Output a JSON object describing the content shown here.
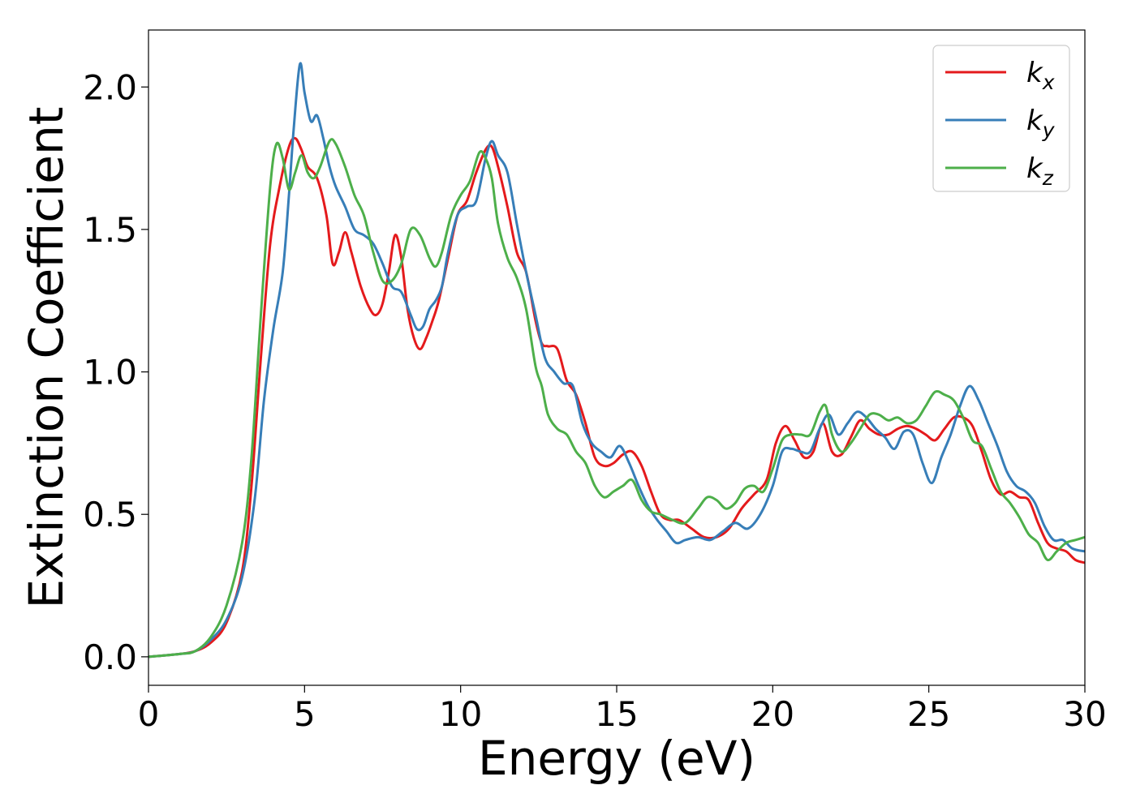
{
  "chart_data": {
    "type": "line",
    "title": "",
    "xlabel": "Energy (eV)",
    "ylabel": "Extinction Coefficient",
    "xlim": [
      0,
      30
    ],
    "ylim": [
      -0.1,
      2.2
    ],
    "xticks": [
      0,
      5,
      10,
      15,
      20,
      25,
      30
    ],
    "xtick_labels": [
      "0",
      "5",
      "10",
      "15",
      "20",
      "25",
      "30"
    ],
    "yticks": [
      0.0,
      0.5,
      1.0,
      1.5,
      2.0
    ],
    "ytick_labels": [
      "0.0",
      "0.5",
      "1.0",
      "1.5",
      "2.0"
    ],
    "grid": false,
    "legend_position": "top-right",
    "series": [
      {
        "name": "k_x",
        "legend_base": "k",
        "legend_sub": "x",
        "color": "#e41a1c",
        "x": [
          0,
          1,
          1.5,
          2,
          2.5,
          3,
          3.3,
          3.6,
          3.9,
          4.2,
          4.5,
          4.7,
          4.9,
          5.1,
          5.4,
          5.7,
          5.9,
          6.1,
          6.3,
          6.5,
          6.8,
          7.1,
          7.3,
          7.5,
          7.7,
          7.9,
          8.1,
          8.3,
          8.5,
          8.7,
          8.9,
          9.1,
          9.3,
          9.6,
          9.9,
          10.2,
          10.5,
          10.8,
          11.0,
          11.2,
          11.5,
          11.8,
          12.1,
          12.4,
          12.6,
          12.8,
          13.1,
          13.4,
          13.7,
          14.0,
          14.3,
          14.6,
          14.9,
          15.2,
          15.5,
          15.8,
          16.1,
          16.4,
          16.7,
          17.0,
          17.4,
          17.8,
          18.2,
          18.6,
          19.0,
          19.4,
          19.8,
          20.1,
          20.4,
          20.7,
          21.0,
          21.3,
          21.6,
          21.9,
          22.2,
          22.5,
          22.8,
          23.1,
          23.4,
          23.7,
          24.0,
          24.3,
          24.6,
          24.9,
          25.2,
          25.5,
          25.8,
          26.1,
          26.4,
          26.7,
          27.0,
          27.3,
          27.6,
          27.9,
          28.2,
          28.5,
          28.8,
          29.1,
          29.4,
          29.7,
          30.0
        ],
        "values": [
          0,
          0.01,
          0.02,
          0.05,
          0.12,
          0.3,
          0.6,
          1.05,
          1.45,
          1.65,
          1.79,
          1.82,
          1.78,
          1.72,
          1.68,
          1.55,
          1.38,
          1.42,
          1.49,
          1.42,
          1.3,
          1.22,
          1.2,
          1.24,
          1.35,
          1.48,
          1.4,
          1.22,
          1.12,
          1.08,
          1.12,
          1.18,
          1.25,
          1.4,
          1.55,
          1.6,
          1.7,
          1.78,
          1.79,
          1.72,
          1.58,
          1.42,
          1.35,
          1.18,
          1.1,
          1.09,
          1.08,
          0.97,
          0.92,
          0.82,
          0.7,
          0.67,
          0.68,
          0.71,
          0.72,
          0.67,
          0.58,
          0.5,
          0.48,
          0.48,
          0.45,
          0.42,
          0.42,
          0.45,
          0.52,
          0.57,
          0.62,
          0.75,
          0.81,
          0.76,
          0.7,
          0.72,
          0.82,
          0.72,
          0.71,
          0.77,
          0.83,
          0.8,
          0.78,
          0.78,
          0.8,
          0.81,
          0.8,
          0.78,
          0.76,
          0.8,
          0.84,
          0.84,
          0.81,
          0.72,
          0.62,
          0.57,
          0.58,
          0.56,
          0.55,
          0.47,
          0.4,
          0.38,
          0.37,
          0.34,
          0.33
        ]
      },
      {
        "name": "k_y",
        "legend_base": "k",
        "legend_sub": "y",
        "color": "#377eb8",
        "x": [
          0,
          1,
          1.5,
          2,
          2.5,
          3,
          3.4,
          3.7,
          4.0,
          4.3,
          4.5,
          4.65,
          4.85,
          5.0,
          5.2,
          5.4,
          5.6,
          5.8,
          6.0,
          6.3,
          6.6,
          6.9,
          7.2,
          7.5,
          7.8,
          8.1,
          8.4,
          8.6,
          8.8,
          9.0,
          9.2,
          9.4,
          9.6,
          9.9,
          10.2,
          10.5,
          10.8,
          11.0,
          11.2,
          11.5,
          11.8,
          12.1,
          12.4,
          12.7,
          13.0,
          13.3,
          13.6,
          13.9,
          14.2,
          14.5,
          14.8,
          15.1,
          15.4,
          15.7,
          16.0,
          16.3,
          16.6,
          16.9,
          17.2,
          17.6,
          18.0,
          18.4,
          18.8,
          19.2,
          19.6,
          20.0,
          20.3,
          20.6,
          20.9,
          21.2,
          21.5,
          21.8,
          22.1,
          22.4,
          22.7,
          23.0,
          23.3,
          23.6,
          23.9,
          24.2,
          24.5,
          24.8,
          25.1,
          25.4,
          25.7,
          26.0,
          26.3,
          26.6,
          26.9,
          27.2,
          27.5,
          27.8,
          28.1,
          28.4,
          28.7,
          29.0,
          29.3,
          29.6,
          30.0
        ],
        "values": [
          0,
          0.01,
          0.02,
          0.06,
          0.13,
          0.28,
          0.55,
          0.9,
          1.15,
          1.35,
          1.62,
          1.85,
          2.08,
          1.98,
          1.88,
          1.9,
          1.82,
          1.72,
          1.65,
          1.58,
          1.5,
          1.48,
          1.45,
          1.38,
          1.3,
          1.28,
          1.2,
          1.15,
          1.16,
          1.22,
          1.25,
          1.3,
          1.42,
          1.55,
          1.58,
          1.6,
          1.75,
          1.81,
          1.76,
          1.7,
          1.52,
          1.35,
          1.2,
          1.05,
          1.0,
          0.96,
          0.95,
          0.82,
          0.75,
          0.72,
          0.7,
          0.74,
          0.68,
          0.6,
          0.53,
          0.48,
          0.44,
          0.4,
          0.41,
          0.42,
          0.41,
          0.44,
          0.47,
          0.45,
          0.5,
          0.6,
          0.72,
          0.73,
          0.72,
          0.72,
          0.8,
          0.85,
          0.78,
          0.82,
          0.86,
          0.84,
          0.8,
          0.77,
          0.73,
          0.79,
          0.78,
          0.68,
          0.61,
          0.7,
          0.78,
          0.88,
          0.95,
          0.9,
          0.82,
          0.74,
          0.65,
          0.6,
          0.58,
          0.54,
          0.46,
          0.41,
          0.41,
          0.38,
          0.37
        ]
      },
      {
        "name": "k_z",
        "legend_base": "k",
        "legend_sub": "z",
        "color": "#4daf4a",
        "x": [
          0,
          1,
          1.5,
          2,
          2.5,
          3,
          3.3,
          3.6,
          3.9,
          4.1,
          4.3,
          4.5,
          4.7,
          4.9,
          5.1,
          5.3,
          5.5,
          5.8,
          6.0,
          6.3,
          6.6,
          6.9,
          7.2,
          7.5,
          7.8,
          8.1,
          8.4,
          8.7,
          9.0,
          9.2,
          9.4,
          9.7,
          10.0,
          10.3,
          10.6,
          10.8,
          11.0,
          11.2,
          11.5,
          11.8,
          12.1,
          12.4,
          12.6,
          12.8,
          13.1,
          13.4,
          13.7,
          14.0,
          14.3,
          14.6,
          14.9,
          15.2,
          15.5,
          15.8,
          16.1,
          16.4,
          16.8,
          17.2,
          17.6,
          17.9,
          18.2,
          18.5,
          18.8,
          19.1,
          19.4,
          19.7,
          20.0,
          20.3,
          20.6,
          20.9,
          21.2,
          21.5,
          21.7,
          21.9,
          22.2,
          22.5,
          22.8,
          23.1,
          23.4,
          23.7,
          24.0,
          24.3,
          24.6,
          24.9,
          25.2,
          25.5,
          25.8,
          26.1,
          26.4,
          26.7,
          27.0,
          27.3,
          27.6,
          27.9,
          28.2,
          28.5,
          28.8,
          29.1,
          29.4,
          29.7,
          30.0
        ],
        "values": [
          0,
          0.01,
          0.02,
          0.07,
          0.18,
          0.4,
          0.7,
          1.2,
          1.65,
          1.8,
          1.75,
          1.64,
          1.7,
          1.76,
          1.7,
          1.68,
          1.72,
          1.81,
          1.8,
          1.72,
          1.62,
          1.55,
          1.42,
          1.32,
          1.32,
          1.38,
          1.5,
          1.48,
          1.4,
          1.37,
          1.42,
          1.55,
          1.62,
          1.67,
          1.77,
          1.75,
          1.68,
          1.52,
          1.4,
          1.33,
          1.22,
          1.02,
          0.95,
          0.85,
          0.8,
          0.78,
          0.72,
          0.68,
          0.6,
          0.56,
          0.58,
          0.6,
          0.62,
          0.55,
          0.51,
          0.5,
          0.48,
          0.47,
          0.52,
          0.56,
          0.55,
          0.52,
          0.54,
          0.59,
          0.6,
          0.58,
          0.66,
          0.76,
          0.78,
          0.78,
          0.78,
          0.86,
          0.88,
          0.78,
          0.72,
          0.75,
          0.8,
          0.85,
          0.85,
          0.83,
          0.84,
          0.82,
          0.83,
          0.88,
          0.93,
          0.92,
          0.9,
          0.84,
          0.76,
          0.74,
          0.66,
          0.58,
          0.54,
          0.49,
          0.43,
          0.4,
          0.34,
          0.37,
          0.4,
          0.41,
          0.42
        ]
      }
    ]
  }
}
